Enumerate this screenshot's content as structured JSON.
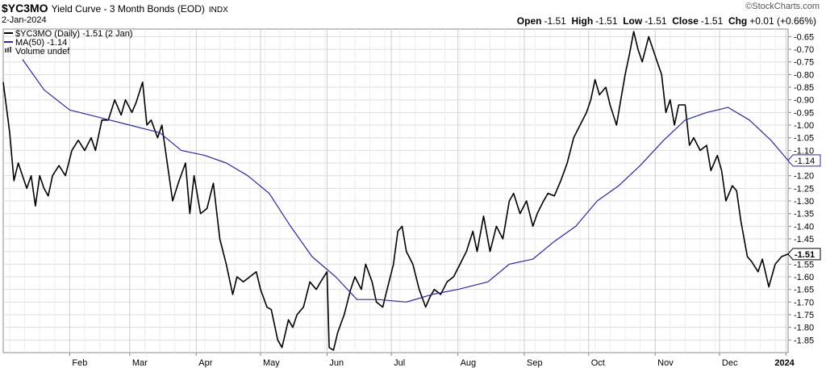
{
  "header": {
    "ticker": "$YC3MO",
    "title": "Yield Curve - 3 Month Bonds (EOD)",
    "exchange": "INDX",
    "date": "2-Jan-2024",
    "watermark": "©StockCharts.com",
    "open_label": "Open",
    "open": "-1.51",
    "high_label": "High",
    "high": "-1.51",
    "low_label": "Low",
    "low": "-1.51",
    "close_label": "Close",
    "close": "-1.51",
    "chg_label": "Chg",
    "chg": "+0.01 (+0.66%)"
  },
  "legend": [
    {
      "text": "$YC3MO (Daily) -1.51 (2 Jan)",
      "color": "#000000",
      "marker": "line"
    },
    {
      "text": "MA(50) -1.14",
      "color": "#2a2a9a",
      "marker": "line"
    },
    {
      "text": "Volume undef",
      "color": "#555555",
      "marker": "bars"
    }
  ],
  "colors": {
    "price": "#000000",
    "ma": "#2a2a9a",
    "grid": "#dddddd",
    "frame": "#888888"
  },
  "chart_data": {
    "type": "line",
    "ylim": [
      -1.9,
      -0.62
    ],
    "yticks": [
      -0.65,
      -0.7,
      -0.75,
      -0.8,
      -0.85,
      -0.9,
      -0.95,
      -1.0,
      -1.05,
      -1.1,
      -1.15,
      -1.2,
      -1.25,
      -1.3,
      -1.35,
      -1.4,
      -1.45,
      -1.5,
      -1.55,
      -1.6,
      -1.65,
      -1.7,
      -1.75,
      -1.8,
      -1.85
    ],
    "ytick_labels": [
      "-0.65",
      "-0.70",
      "-0.75",
      "-0.80",
      "-0.85",
      "-0.90",
      "-0.95",
      "-1.00",
      "-1.05",
      "-1.10",
      "-1.15",
      "-1.20",
      "-1.25",
      "-1.30",
      "-1.35",
      "-1.40",
      "-1.45",
      "-1.50",
      "-1.55",
      "-1.60",
      "-1.65",
      "-1.70",
      "-1.75",
      "-1.80",
      "-1.85"
    ],
    "xlim": [
      "2023-01-01",
      "2024-01-02"
    ],
    "xticks": [
      {
        "label": "Feb",
        "date": "2023-02-01"
      },
      {
        "label": "Mar",
        "date": "2023-03-01"
      },
      {
        "label": "Apr",
        "date": "2023-04-01"
      },
      {
        "label": "May",
        "date": "2023-05-01"
      },
      {
        "label": "Jun",
        "date": "2023-06-01"
      },
      {
        "label": "Jul",
        "date": "2023-07-01"
      },
      {
        "label": "Aug",
        "date": "2023-08-01"
      },
      {
        "label": "Sep",
        "date": "2023-09-01"
      },
      {
        "label": "Oct",
        "date": "2023-10-01"
      },
      {
        "label": "Nov",
        "date": "2023-11-01"
      },
      {
        "label": "Dec",
        "date": "2023-12-01"
      },
      {
        "label": "2024",
        "date": "2024-01-01",
        "bold": true
      }
    ],
    "grid": true,
    "last_value_markers": [
      {
        "value": -1.14,
        "label": "-1.14",
        "series": "MA(50)"
      },
      {
        "value": -1.51,
        "label": "-1.51",
        "series": "$YC3MO"
      }
    ],
    "series": [
      {
        "name": "$YC3MO (Daily)",
        "color": "#000000",
        "points": [
          [
            "2023-01-01",
            -0.83
          ],
          [
            "2023-01-04",
            -1.03
          ],
          [
            "2023-01-06",
            -1.22
          ],
          [
            "2023-01-08",
            -1.15
          ],
          [
            "2023-01-10",
            -1.2
          ],
          [
            "2023-01-12",
            -1.25
          ],
          [
            "2023-01-14",
            -1.2
          ],
          [
            "2023-01-16",
            -1.32
          ],
          [
            "2023-01-18",
            -1.2
          ],
          [
            "2023-01-20",
            -1.25
          ],
          [
            "2023-01-22",
            -1.28
          ],
          [
            "2023-01-24",
            -1.2
          ],
          [
            "2023-01-27",
            -1.16
          ],
          [
            "2023-01-30",
            -1.2
          ],
          [
            "2023-02-02",
            -1.1
          ],
          [
            "2023-02-05",
            -1.06
          ],
          [
            "2023-02-08",
            -1.1
          ],
          [
            "2023-02-11",
            -1.05
          ],
          [
            "2023-02-13",
            -1.1
          ],
          [
            "2023-02-16",
            -0.98
          ],
          [
            "2023-02-19",
            -0.98
          ],
          [
            "2023-02-22",
            -0.9
          ],
          [
            "2023-02-25",
            -0.96
          ],
          [
            "2023-02-27",
            -0.9
          ],
          [
            "2023-03-02",
            -0.95
          ],
          [
            "2023-03-04",
            -0.91
          ],
          [
            "2023-03-07",
            -0.83
          ],
          [
            "2023-03-09",
            -1.0
          ],
          [
            "2023-03-11",
            -0.98
          ],
          [
            "2023-03-14",
            -1.05
          ],
          [
            "2023-03-16",
            -1.0
          ],
          [
            "2023-03-18",
            -1.12
          ],
          [
            "2023-03-21",
            -1.3
          ],
          [
            "2023-03-24",
            -1.22
          ],
          [
            "2023-03-27",
            -1.15
          ],
          [
            "2023-03-29",
            -1.35
          ],
          [
            "2023-03-31",
            -1.2
          ],
          [
            "2023-04-03",
            -1.35
          ],
          [
            "2023-04-06",
            -1.33
          ],
          [
            "2023-04-09",
            -1.23
          ],
          [
            "2023-04-12",
            -1.45
          ],
          [
            "2023-04-15",
            -1.55
          ],
          [
            "2023-04-18",
            -1.67
          ],
          [
            "2023-04-20",
            -1.6
          ],
          [
            "2023-04-23",
            -1.62
          ],
          [
            "2023-04-26",
            -1.6
          ],
          [
            "2023-04-29",
            -1.58
          ],
          [
            "2023-05-01",
            -1.65
          ],
          [
            "2023-05-04",
            -1.72
          ],
          [
            "2023-05-06",
            -1.73
          ],
          [
            "2023-05-09",
            -1.85
          ],
          [
            "2023-05-11",
            -1.88
          ],
          [
            "2023-05-14",
            -1.77
          ],
          [
            "2023-05-16",
            -1.8
          ],
          [
            "2023-05-18",
            -1.75
          ],
          [
            "2023-05-21",
            -1.72
          ],
          [
            "2023-05-24",
            -1.62
          ],
          [
            "2023-05-27",
            -1.65
          ],
          [
            "2023-05-29",
            -1.62
          ],
          [
            "2023-06-01",
            -1.58
          ],
          [
            "2023-06-02",
            -1.88
          ],
          [
            "2023-06-04",
            -1.89
          ],
          [
            "2023-06-06",
            -1.82
          ],
          [
            "2023-06-09",
            -1.75
          ],
          [
            "2023-06-12",
            -1.65
          ],
          [
            "2023-06-14",
            -1.6
          ],
          [
            "2023-06-17",
            -1.65
          ],
          [
            "2023-06-19",
            -1.55
          ],
          [
            "2023-06-22",
            -1.62
          ],
          [
            "2023-06-24",
            -1.7
          ],
          [
            "2023-06-27",
            -1.72
          ],
          [
            "2023-06-29",
            -1.65
          ],
          [
            "2023-07-02",
            -1.55
          ],
          [
            "2023-07-04",
            -1.42
          ],
          [
            "2023-07-06",
            -1.4
          ],
          [
            "2023-07-08",
            -1.5
          ],
          [
            "2023-07-11",
            -1.55
          ],
          [
            "2023-07-14",
            -1.65
          ],
          [
            "2023-07-17",
            -1.72
          ],
          [
            "2023-07-19",
            -1.68
          ],
          [
            "2023-07-21",
            -1.65
          ],
          [
            "2023-07-24",
            -1.67
          ],
          [
            "2023-07-27",
            -1.62
          ],
          [
            "2023-07-30",
            -1.6
          ],
          [
            "2023-08-02",
            -1.55
          ],
          [
            "2023-08-05",
            -1.5
          ],
          [
            "2023-08-08",
            -1.42
          ],
          [
            "2023-08-10",
            -1.5
          ],
          [
            "2023-08-13",
            -1.36
          ],
          [
            "2023-08-16",
            -1.5
          ],
          [
            "2023-08-19",
            -1.4
          ],
          [
            "2023-08-22",
            -1.45
          ],
          [
            "2023-08-25",
            -1.3
          ],
          [
            "2023-08-27",
            -1.27
          ],
          [
            "2023-08-30",
            -1.35
          ],
          [
            "2023-09-02",
            -1.3
          ],
          [
            "2023-09-05",
            -1.4
          ],
          [
            "2023-09-07",
            -1.35
          ],
          [
            "2023-09-10",
            -1.3
          ],
          [
            "2023-09-12",
            -1.27
          ],
          [
            "2023-09-15",
            -1.28
          ],
          [
            "2023-09-18",
            -1.22
          ],
          [
            "2023-09-21",
            -1.15
          ],
          [
            "2023-09-24",
            -1.05
          ],
          [
            "2023-09-27",
            -1.0
          ],
          [
            "2023-09-30",
            -0.95
          ],
          [
            "2023-10-02",
            -0.9
          ],
          [
            "2023-10-04",
            -0.82
          ],
          [
            "2023-10-06",
            -0.88
          ],
          [
            "2023-10-09",
            -0.85
          ],
          [
            "2023-10-11",
            -0.92
          ],
          [
            "2023-10-14",
            -1.0
          ],
          [
            "2023-10-16",
            -0.9
          ],
          [
            "2023-10-18",
            -0.8
          ],
          [
            "2023-10-20",
            -0.72
          ],
          [
            "2023-10-22",
            -0.63
          ],
          [
            "2023-10-24",
            -0.7
          ],
          [
            "2023-10-26",
            -0.75
          ],
          [
            "2023-10-29",
            -0.65
          ],
          [
            "2023-10-31",
            -0.7
          ],
          [
            "2023-11-02",
            -0.75
          ],
          [
            "2023-11-04",
            -0.8
          ],
          [
            "2023-11-06",
            -0.95
          ],
          [
            "2023-11-08",
            -0.9
          ],
          [
            "2023-11-10",
            -1.0
          ],
          [
            "2023-11-12",
            -0.92
          ],
          [
            "2023-11-15",
            -0.92
          ],
          [
            "2023-11-17",
            -1.08
          ],
          [
            "2023-11-19",
            -1.05
          ],
          [
            "2023-11-22",
            -1.1
          ],
          [
            "2023-11-25",
            -1.08
          ],
          [
            "2023-11-27",
            -1.18
          ],
          [
            "2023-11-30",
            -1.12
          ],
          [
            "2023-12-02",
            -1.18
          ],
          [
            "2023-12-04",
            -1.3
          ],
          [
            "2023-12-07",
            -1.24
          ],
          [
            "2023-12-09",
            -1.26
          ],
          [
            "2023-12-11",
            -1.38
          ],
          [
            "2023-12-14",
            -1.52
          ],
          [
            "2023-12-16",
            -1.54
          ],
          [
            "2023-12-19",
            -1.58
          ],
          [
            "2023-12-21",
            -1.53
          ],
          [
            "2023-12-24",
            -1.64
          ],
          [
            "2023-12-27",
            -1.55
          ],
          [
            "2023-12-30",
            -1.52
          ],
          [
            "2024-01-02",
            -1.51
          ]
        ]
      },
      {
        "name": "MA(50)",
        "color": "#2a2a9a",
        "points": [
          [
            "2023-01-10",
            -0.74
          ],
          [
            "2023-01-20",
            -0.86
          ],
          [
            "2023-02-01",
            -0.94
          ],
          [
            "2023-02-15",
            -0.97
          ],
          [
            "2023-03-01",
            -1.0
          ],
          [
            "2023-03-15",
            -1.03
          ],
          [
            "2023-03-25",
            -1.1
          ],
          [
            "2023-04-05",
            -1.12
          ],
          [
            "2023-04-15",
            -1.15
          ],
          [
            "2023-04-25",
            -1.2
          ],
          [
            "2023-05-05",
            -1.27
          ],
          [
            "2023-05-15",
            -1.4
          ],
          [
            "2023-05-25",
            -1.52
          ],
          [
            "2023-06-05",
            -1.6
          ],
          [
            "2023-06-15",
            -1.69
          ],
          [
            "2023-06-25",
            -1.69
          ],
          [
            "2023-07-08",
            -1.7
          ],
          [
            "2023-07-20",
            -1.67
          ],
          [
            "2023-08-01",
            -1.65
          ],
          [
            "2023-08-15",
            -1.62
          ],
          [
            "2023-08-25",
            -1.55
          ],
          [
            "2023-09-05",
            -1.53
          ],
          [
            "2023-09-15",
            -1.46
          ],
          [
            "2023-09-25",
            -1.4
          ],
          [
            "2023-10-05",
            -1.3
          ],
          [
            "2023-10-15",
            -1.24
          ],
          [
            "2023-10-25",
            -1.16
          ],
          [
            "2023-11-05",
            -1.06
          ],
          [
            "2023-11-15",
            -0.98
          ],
          [
            "2023-11-25",
            -0.95
          ],
          [
            "2023-12-05",
            -0.93
          ],
          [
            "2023-12-15",
            -0.98
          ],
          [
            "2023-12-25",
            -1.06
          ],
          [
            "2024-01-02",
            -1.14
          ]
        ]
      }
    ]
  }
}
